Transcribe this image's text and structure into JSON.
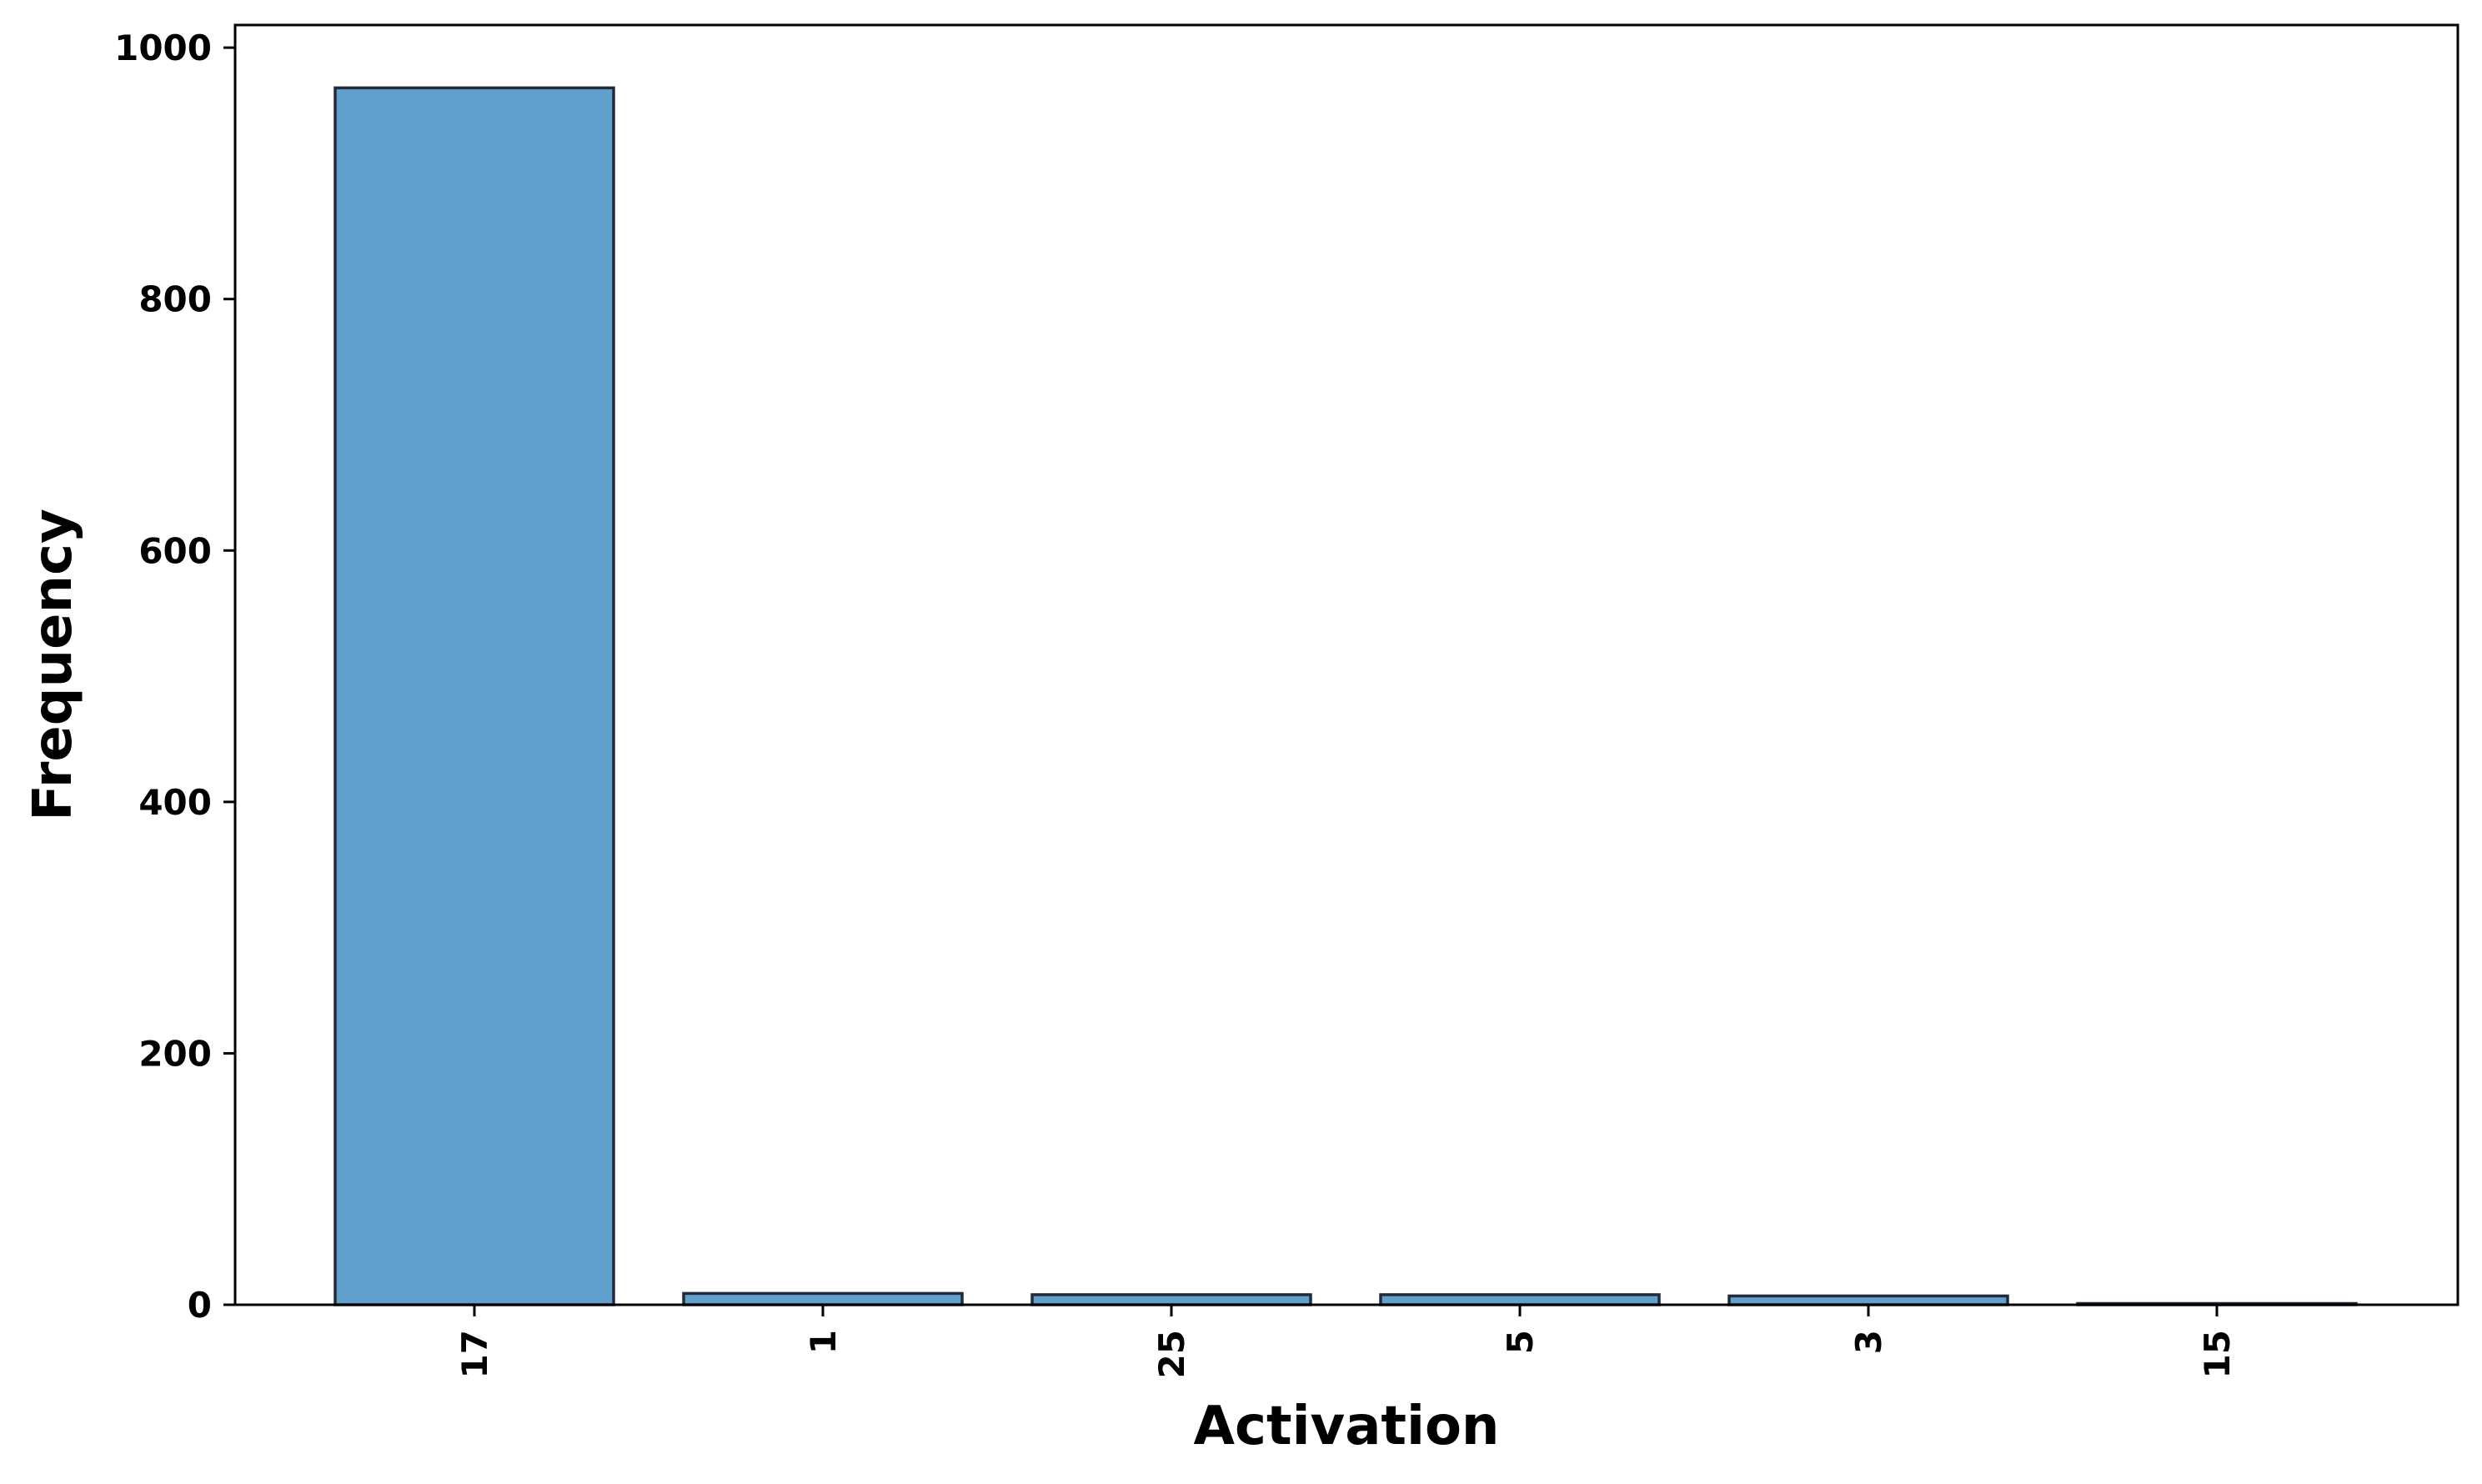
{
  "chart_data": {
    "type": "bar",
    "title": "",
    "xlabel": "Activation",
    "ylabel": "Frequency",
    "categories": [
      "17",
      "1",
      "25",
      "5",
      "3",
      "15"
    ],
    "values": [
      968,
      9,
      8,
      8,
      7,
      1
    ],
    "ylim": [
      0,
      1018
    ],
    "yticks": [
      0,
      200,
      400,
      600,
      800,
      1000
    ],
    "x_tick_rotation": "vertical",
    "grid": false,
    "legend": "none",
    "bar_color": "#61a0cc",
    "bar_edge_color": "#222b3a"
  }
}
